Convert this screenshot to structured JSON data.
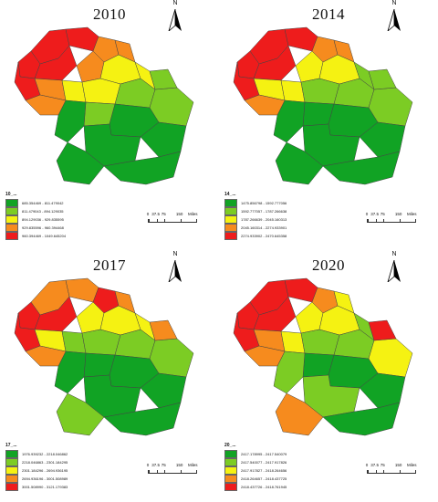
{
  "colors": {
    "class1": "#11a324",
    "class2": "#7ccc24",
    "class3": "#f5f212",
    "class4": "#f68b1e",
    "class5": "#ee1c1c"
  },
  "north_label": "N",
  "scale": {
    "ticks": [
      "0",
      "37.5",
      "75",
      "150"
    ],
    "unit": "Miles"
  },
  "panels": [
    {
      "year": "2010",
      "legend_title": "10_...",
      "legend": [
        "685.354469 - 811.479042",
        "811.479043 - 894.129035",
        "894.129036 - 929.835595",
        "929.835596 - 960.394468",
        "960.394469 - 1049.645204"
      ],
      "regions": [
        5,
        5,
        5,
        5,
        5,
        4,
        4,
        4,
        4,
        3,
        3,
        3,
        3,
        2,
        2,
        2,
        1,
        1,
        1,
        1,
        1,
        1,
        4,
        2
      ]
    },
    {
      "year": "2014",
      "legend_title": "14_...",
      "legend": [
        "1475.856798 - 1592.777056",
        "1592.777057 - 1787.266638",
        "1787.266639 - 2045.160313",
        "2045.160314 - 2274.933901",
        "2274.933902 - 2470.645358"
      ],
      "regions": [
        5,
        5,
        5,
        5,
        5,
        4,
        4,
        3,
        3,
        3,
        2,
        3,
        2,
        2,
        2,
        1,
        1,
        1,
        1,
        1,
        1,
        1,
        4,
        2
      ]
    },
    {
      "year": "2017",
      "legend_title": "17_...",
      "legend": [
        "1976.939232 - 2218.046862",
        "2218.046863 - 2301.184295",
        "2301.184296 - 2694.936195",
        "2694.936196 - 3001.508989",
        "3001.508990 - 3121.179383"
      ],
      "regions": [
        4,
        4,
        5,
        5,
        5,
        5,
        4,
        3,
        3,
        3,
        3,
        2,
        2,
        2,
        2,
        1,
        1,
        1,
        1,
        1,
        2,
        1,
        4,
        4
      ]
    },
    {
      "year": "2020",
      "legend_title": "20_...",
      "legend": [
        "2417.178995 - 2417.540079",
        "2417.540077 - 2417.917826",
        "2417.917827 - 2418.264656",
        "2418.264657 - 2418.437725",
        "2418.437726 - 2418.761945"
      ],
      "regions": [
        5,
        5,
        5,
        5,
        5,
        4,
        3,
        3,
        4,
        3,
        2,
        3,
        2,
        2,
        3,
        1,
        1,
        2,
        1,
        2,
        4,
        1,
        4,
        5
      ]
    }
  ]
}
